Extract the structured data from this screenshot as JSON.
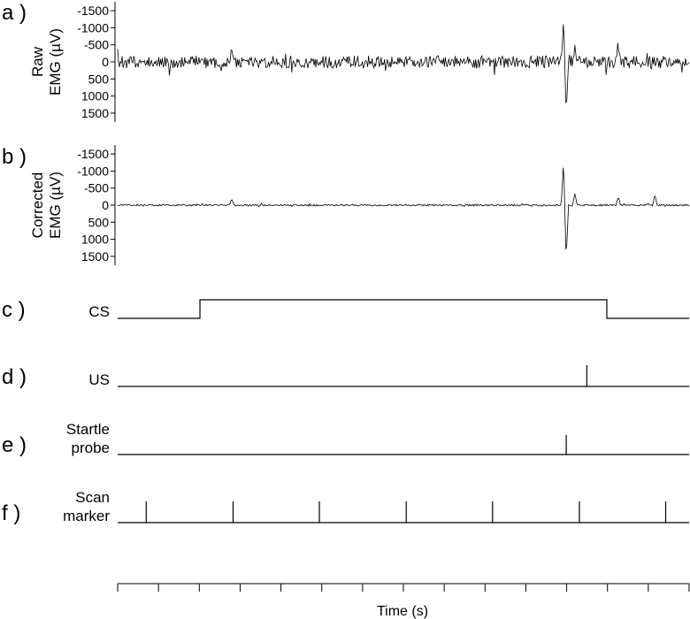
{
  "chart_data": {
    "type": "line",
    "xlabel": "Time (s)",
    "x_tick_count": 15,
    "emg_panels": [
      {
        "panel": "a )",
        "ylabel_lines": [
          "Raw",
          "EMG  (µV)"
        ],
        "yticks": [
          "-1500",
          "-1000",
          "-500",
          "0",
          "500",
          "1000",
          "1500"
        ],
        "ylim": [
          1750,
          -1750
        ],
        "noise_amplitude": 180,
        "events": [
          {
            "x": 0.2,
            "y": -450
          },
          {
            "x": 0.78,
            "y": -1200
          },
          {
            "x": 0.785,
            "y": 1550
          },
          {
            "x": 0.8,
            "y": -500
          },
          {
            "x": 0.876,
            "y": -550
          }
        ]
      },
      {
        "panel": "b )",
        "ylabel_lines": [
          "Corrected",
          "EMG  (µV)"
        ],
        "yticks": [
          "-1500",
          "-1000",
          "-500",
          "0",
          "500",
          "1000",
          "1500"
        ],
        "ylim": [
          1750,
          -1750
        ],
        "noise_amplitude": 25,
        "events": [
          {
            "x": 0.2,
            "y": -200
          },
          {
            "x": 0.78,
            "y": -1200
          },
          {
            "x": 0.785,
            "y": 1550
          },
          {
            "x": 0.8,
            "y": -350
          },
          {
            "x": 0.876,
            "y": -250
          },
          {
            "x": 0.94,
            "y": -300
          }
        ]
      }
    ],
    "channels": [
      {
        "panel": "c )",
        "label_lines": [
          "CS"
        ],
        "kind": "step",
        "on": 0.144,
        "off": 0.856
      },
      {
        "panel": "d )",
        "label_lines": [
          "US"
        ],
        "kind": "pulse",
        "times": [
          0.821
        ]
      },
      {
        "panel": "e )",
        "label_lines": [
          "Startle",
          "probe"
        ],
        "kind": "pulse",
        "times": [
          0.785
        ]
      },
      {
        "panel": "f )",
        "label_lines": [
          "Scan",
          "marker"
        ],
        "kind": "pulse",
        "times": [
          0.05,
          0.202,
          0.353,
          0.505,
          0.656,
          0.808,
          0.959
        ]
      }
    ]
  }
}
